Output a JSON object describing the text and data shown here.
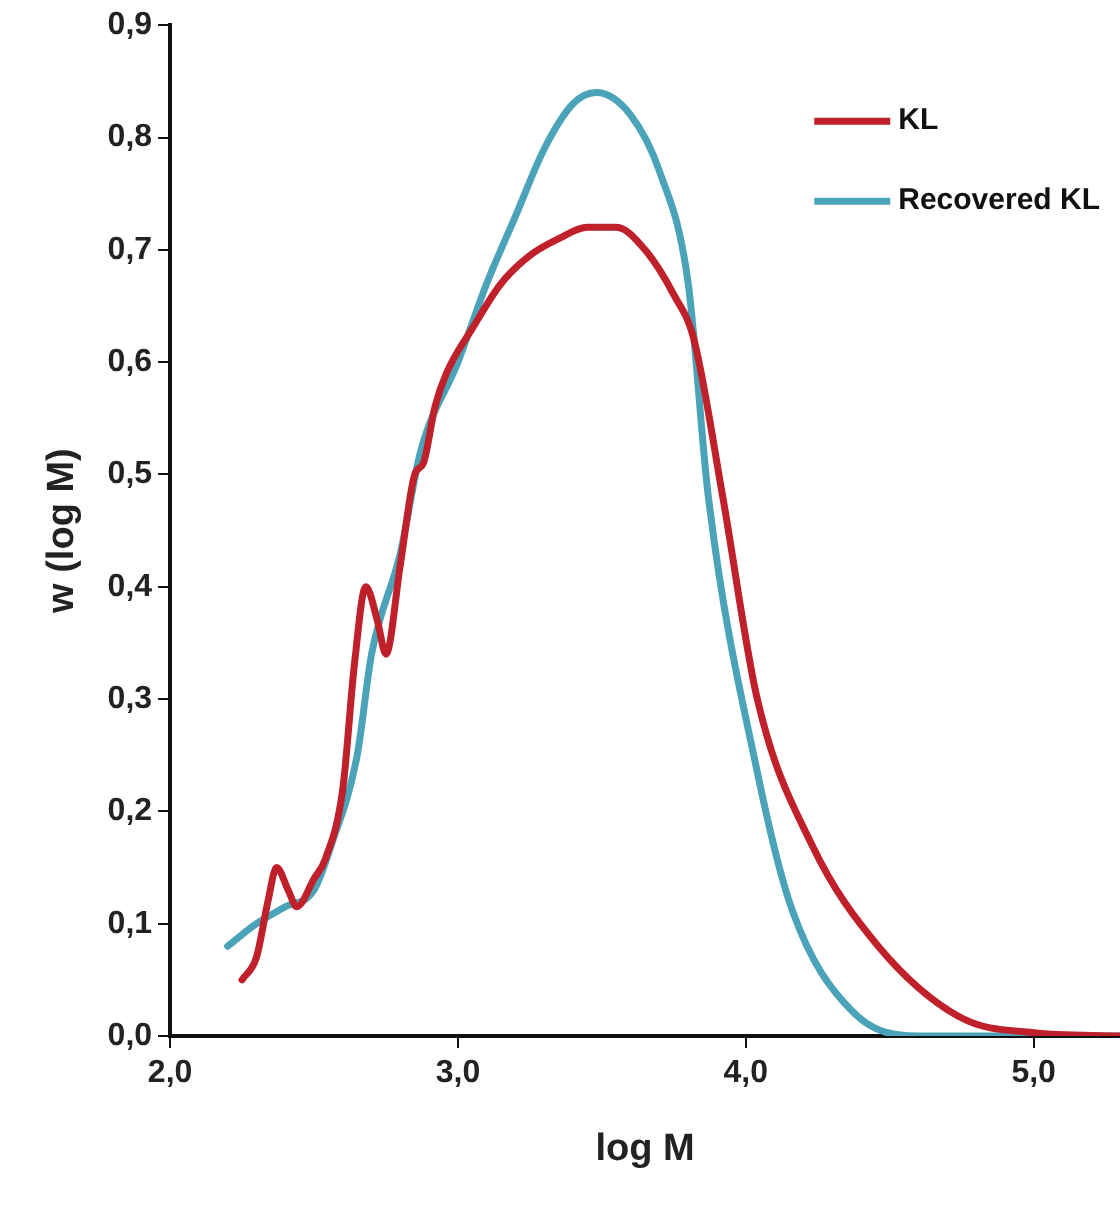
{
  "chart_data": {
    "type": "line",
    "xlabel": "log M",
    "ylabel": "w (log M)",
    "xlim": [
      2.0,
      5.3
    ],
    "xticks": [
      {
        "value": 2,
        "label": "2,0"
      },
      {
        "value": 3,
        "label": "3,0"
      },
      {
        "value": 4,
        "label": "4,0"
      },
      {
        "value": 5,
        "label": "5,0"
      }
    ],
    "ylim": [
      0,
      0.9
    ],
    "yticks": [
      {
        "value": 0,
        "label": "0,0"
      },
      {
        "value": 0.1,
        "label": "0,1"
      },
      {
        "value": 0.2,
        "label": "0,2"
      },
      {
        "value": 0.3,
        "label": "0,3"
      },
      {
        "value": 0.4,
        "label": "0,4"
      },
      {
        "value": 0.5,
        "label": "0,5"
      },
      {
        "value": 0.6,
        "label": "0,6"
      },
      {
        "value": 0.7,
        "label": "0,7"
      },
      {
        "value": 0.8,
        "label": "0,8"
      },
      {
        "value": 0.9,
        "label": "0,9"
      }
    ],
    "grid": false,
    "legend": "top right",
    "marker": "none",
    "line_style": "solid",
    "series": [
      {
        "name": "KL",
        "color": "#c0202a",
        "x": [
          2.25,
          2.3,
          2.34,
          2.37,
          2.41,
          2.44,
          2.5,
          2.54,
          2.6,
          2.64,
          2.68,
          2.72,
          2.75,
          2.8,
          2.85,
          2.88,
          2.92,
          2.96,
          3.05,
          3.15,
          3.25,
          3.35,
          3.45,
          3.55,
          3.65,
          3.75,
          3.82,
          3.92,
          4.04,
          4.23,
          4.46,
          4.75,
          5.0,
          5.3
        ],
        "values": [
          0.05,
          0.07,
          0.12,
          0.15,
          0.13,
          0.115,
          0.14,
          0.158,
          0.22,
          0.33,
          0.4,
          0.37,
          0.34,
          0.42,
          0.5,
          0.51,
          0.56,
          0.59,
          0.63,
          0.67,
          0.695,
          0.71,
          0.72,
          0.72,
          0.7,
          0.66,
          0.62,
          0.48,
          0.3,
          0.17,
          0.08,
          0.016,
          0.003,
          0.0
        ]
      },
      {
        "name": "Recovered KL",
        "color": "#4aa3b8",
        "x": [
          2.2,
          2.3,
          2.4,
          2.5,
          2.56,
          2.65,
          2.7,
          2.8,
          2.87,
          3.0,
          3.1,
          3.2,
          3.3,
          3.4,
          3.48,
          3.6,
          3.7,
          3.8,
          3.87,
          4.04,
          4.16,
          4.37,
          4.6,
          5.3
        ],
        "values": [
          0.08,
          0.1,
          0.115,
          0.13,
          0.17,
          0.25,
          0.34,
          0.43,
          0.52,
          0.6,
          0.67,
          0.73,
          0.79,
          0.83,
          0.84,
          0.82,
          0.77,
          0.67,
          0.48,
          0.235,
          0.113,
          0.022,
          0.0,
          0.0
        ]
      }
    ]
  }
}
